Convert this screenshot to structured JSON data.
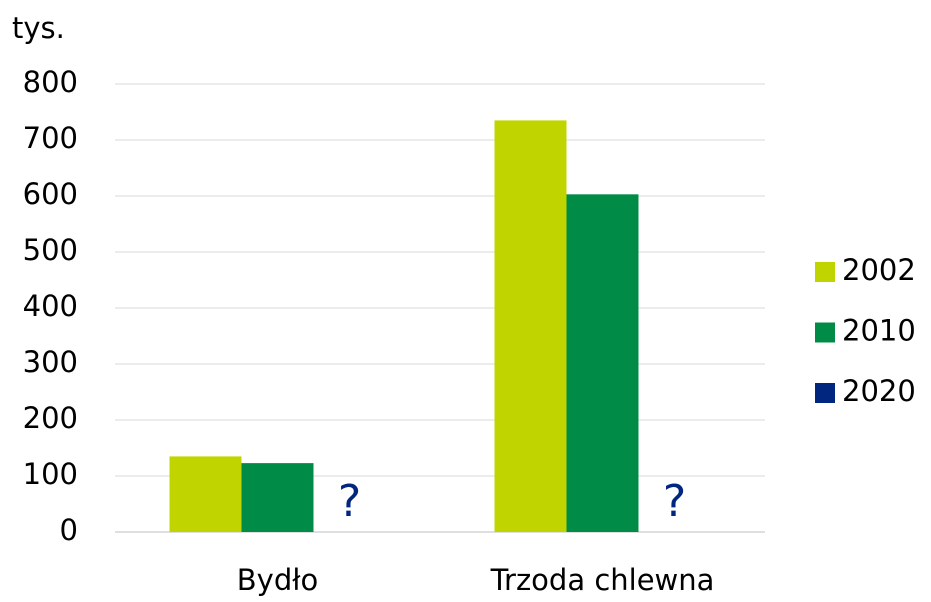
{
  "chart_data": {
    "type": "bar",
    "y_axis_label": "tys.",
    "categories": [
      "Bydło",
      "Trzoda chlewna"
    ],
    "series": [
      {
        "name": "2002",
        "color": "#c0d400",
        "values": [
          135,
          735
        ]
      },
      {
        "name": "2010",
        "color": "#008c46",
        "values": [
          123,
          603
        ]
      },
      {
        "name": "2020",
        "color": "#002680",
        "values": [
          null,
          null
        ],
        "value_labels": [
          "?",
          "?"
        ]
      }
    ],
    "ylim": [
      0,
      800
    ],
    "yticks": [
      0,
      100,
      200,
      300,
      400,
      500,
      600,
      700,
      800
    ],
    "grid": true,
    "legend": "right"
  }
}
